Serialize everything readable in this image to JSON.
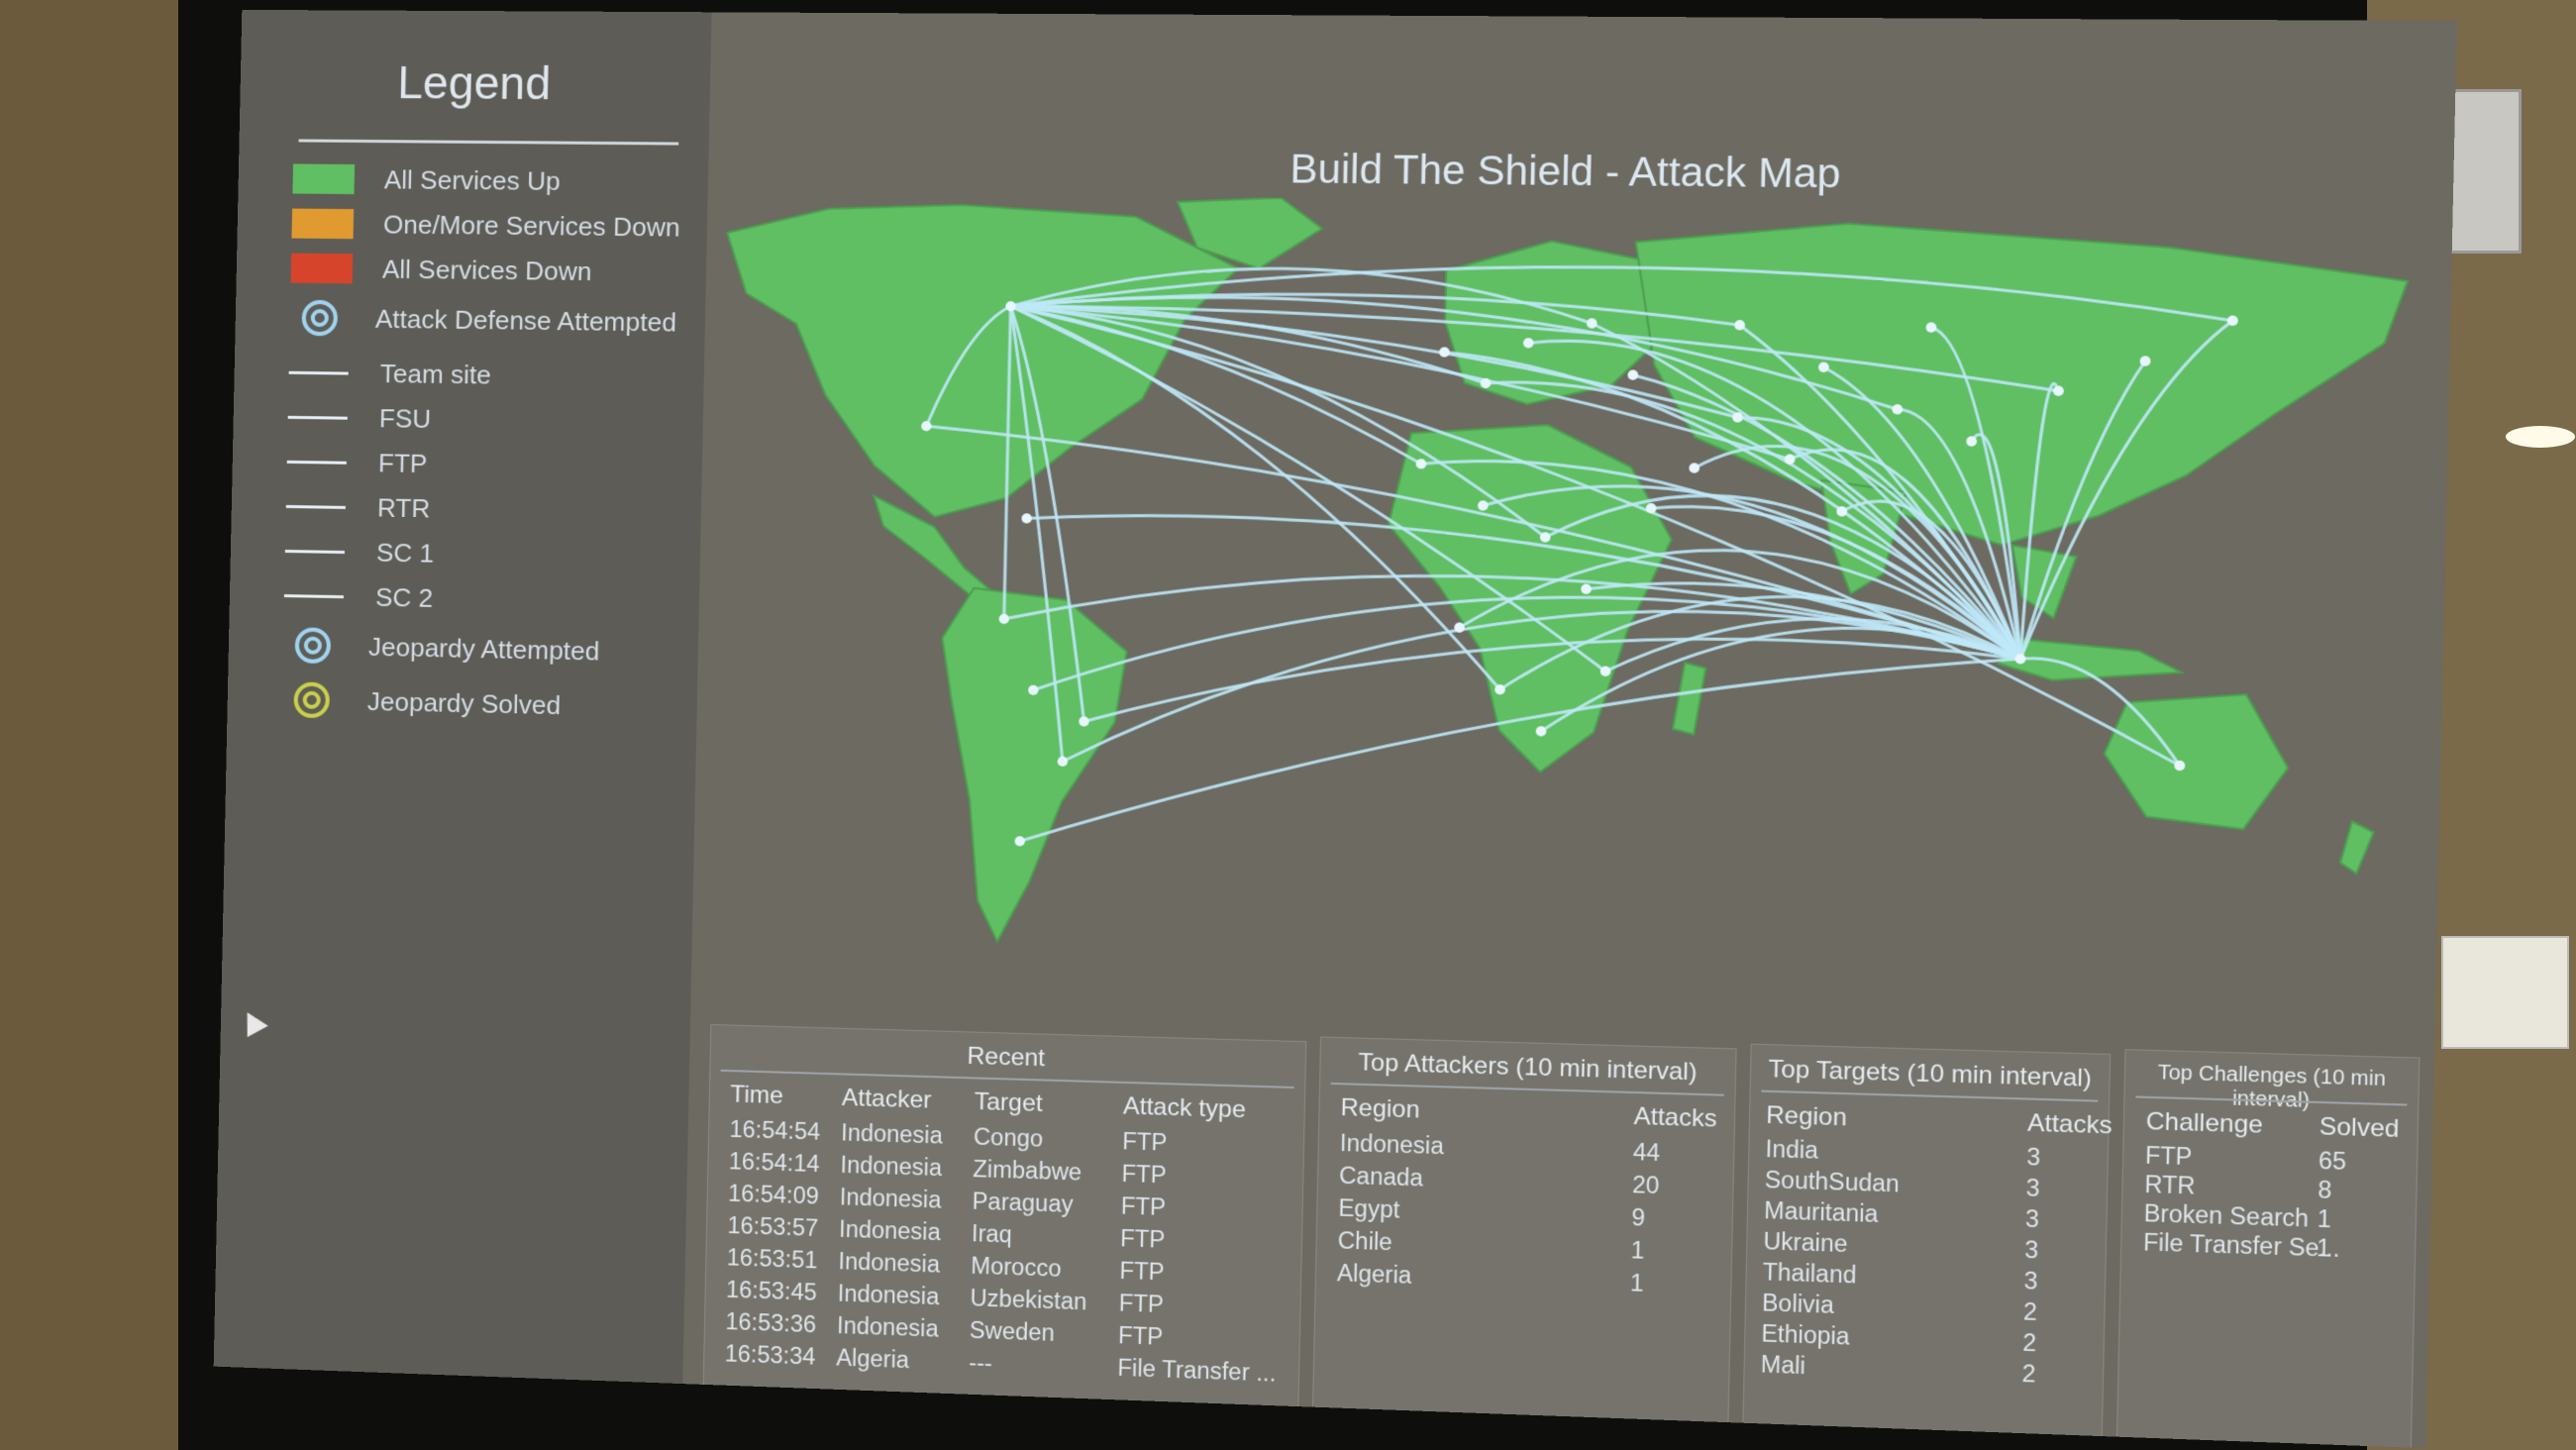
{
  "legend": {
    "title": "Legend",
    "items": [
      {
        "label": "All Services Up",
        "kind": "swatch",
        "color": "#5fbf62"
      },
      {
        "label": "One/More Services Down",
        "kind": "swatch",
        "color": "#e09a2f"
      },
      {
        "label": "All Services Down",
        "kind": "swatch",
        "color": "#d6442c"
      },
      {
        "label": "Attack Defense Attempted",
        "kind": "ring",
        "color": "#9fd4f0"
      },
      {
        "label": "Team site",
        "kind": "line",
        "color": "#e6eef4"
      },
      {
        "label": "FSU",
        "kind": "line",
        "color": "#e6eef4"
      },
      {
        "label": "FTP",
        "kind": "line",
        "color": "#e6eef4"
      },
      {
        "label": "RTR",
        "kind": "line",
        "color": "#e6eef4"
      },
      {
        "label": "SC 1",
        "kind": "line",
        "color": "#e6eef4"
      },
      {
        "label": "SC 2",
        "kind": "line",
        "color": "#e6eef4"
      },
      {
        "label": "Jeopardy Attempted",
        "kind": "ring",
        "color": "#9fd4f0"
      },
      {
        "label": "Jeopardy Solved",
        "kind": "ring",
        "color": "#c9d04a"
      }
    ]
  },
  "map": {
    "title": "Build The Shield - Attack Map",
    "land_color": "#5fbf62",
    "arc_color": "#bfe8f8"
  },
  "recent": {
    "title": "Recent",
    "headers": [
      "Time",
      "Attacker",
      "Target",
      "Attack type"
    ],
    "rows": [
      [
        "16:54:54",
        "Indonesia",
        "Congo",
        "FTP"
      ],
      [
        "16:54:14",
        "Indonesia",
        "Zimbabwe",
        "FTP"
      ],
      [
        "16:54:09",
        "Indonesia",
        "Paraguay",
        "FTP"
      ],
      [
        "16:53:57",
        "Indonesia",
        "Iraq",
        "FTP"
      ],
      [
        "16:53:51",
        "Indonesia",
        "Morocco",
        "FTP"
      ],
      [
        "16:53:45",
        "Indonesia",
        "Uzbekistan",
        "FTP"
      ],
      [
        "16:53:36",
        "Indonesia",
        "Sweden",
        "FTP"
      ],
      [
        "16:53:34",
        "Algeria",
        "---",
        "File Transfer ..."
      ]
    ]
  },
  "top_attackers": {
    "title": "Top Attackers (10 min interval)",
    "headers": [
      "Region",
      "Attacks"
    ],
    "rows": [
      [
        "Indonesia",
        "44"
      ],
      [
        "Canada",
        "20"
      ],
      [
        "Egypt",
        "9"
      ],
      [
        "Chile",
        "1"
      ],
      [
        "Algeria",
        "1"
      ]
    ]
  },
  "top_targets": {
    "title": "Top Targets (10 min interval)",
    "headers": [
      "Region",
      "Attacks"
    ],
    "rows": [
      [
        "India",
        "3"
      ],
      [
        "SouthSudan",
        "3"
      ],
      [
        "Mauritania",
        "3"
      ],
      [
        "Ukraine",
        "3"
      ],
      [
        "Thailand",
        "3"
      ],
      [
        "Bolivia",
        "2"
      ],
      [
        "Ethiopia",
        "2"
      ],
      [
        "Mali",
        "2"
      ]
    ]
  },
  "top_challenges": {
    "title": "Top Challenges (10 min interval)",
    "headers": [
      "Challenge",
      "Solved"
    ],
    "rows": [
      [
        "FTP",
        "65"
      ],
      [
        "RTR",
        "8"
      ],
      [
        "Broken Search",
        "1"
      ],
      [
        "File Transfer Se...",
        "1"
      ]
    ]
  }
}
